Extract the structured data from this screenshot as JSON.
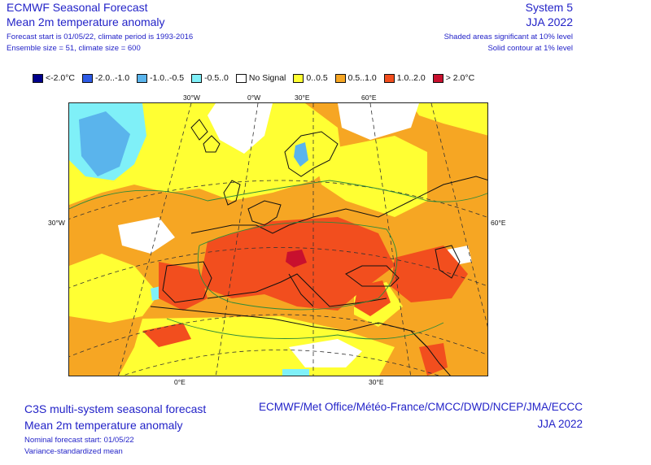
{
  "header": {
    "org": "ECMWF Seasonal Forecast",
    "title": "Mean 2m temperature anomaly",
    "forecast_line": "Forecast start is 01/05/22, climate period is 1993-2016",
    "ensemble_line": "Ensemble size = 51, climate size = 600",
    "system": "System 5",
    "season": "JJA 2022",
    "significance_line": "Shaded areas significant at 10% level",
    "contour_line": "Solid contour at 1% level"
  },
  "legend": [
    {
      "label": "<-2.0°C",
      "color": "#00008b"
    },
    {
      "label": "-2.0..-1.0",
      "color": "#2e5be6"
    },
    {
      "label": "-1.0..-0.5",
      "color": "#5ab4ec"
    },
    {
      "label": "-0.5..0",
      "color": "#7ff0f8"
    },
    {
      "label": "No Signal",
      "color": "#ffffff"
    },
    {
      "label": "0..0.5",
      "color": "#ffff33"
    },
    {
      "label": "0.5..1.0",
      "color": "#f6a623"
    },
    {
      "label": "1.0..2.0",
      "color": "#f24e1e"
    },
    {
      "label": "> 2.0°C",
      "color": "#c8102e"
    }
  ],
  "map": {
    "lon_labels_top": [
      "30°W",
      "0°W",
      "30°E",
      "60°E"
    ],
    "lon_labels_bottom": [
      "0°E",
      "30°E"
    ],
    "lat_label_left": "30°W",
    "lat_label_right": "60°E"
  },
  "footer": {
    "title1": "C3S multi-system seasonal forecast",
    "title2": "Mean 2m temperature anomaly",
    "nominal": "Nominal forecast start: 01/05/22",
    "variance": "Variance-standardized mean",
    "centres": "ECMWF/Met Office/Météo-France/CMCC/DWD/NCEP/JMA/ECCC",
    "season": "JJA 2022"
  }
}
